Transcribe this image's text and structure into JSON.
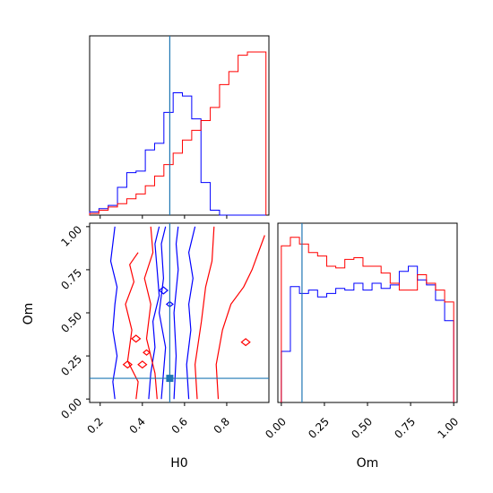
{
  "chart_data": [
    {
      "panel": "H0 marginal",
      "type": "histogram",
      "xlim": [
        0.15,
        1.0
      ],
      "truth_line": 0.53,
      "series": [
        {
          "color": "#0000ff",
          "bin_edges": [
            0.15,
            0.194,
            0.238,
            0.282,
            0.326,
            0.37,
            0.414,
            0.458,
            0.502,
            0.546,
            0.59,
            0.634,
            0.678,
            0.722,
            0.766,
            0.81,
            0.854,
            0.898,
            0.942,
            0.986
          ],
          "counts": [
            0.02,
            0.04,
            0.06,
            0.17,
            0.26,
            0.27,
            0.4,
            0.44,
            0.63,
            0.75,
            0.73,
            0.59,
            0.2,
            0.03,
            0.0,
            0.0,
            0.0,
            0.0,
            0.0
          ]
        },
        {
          "color": "#ff0000",
          "bin_edges": [
            0.15,
            0.194,
            0.238,
            0.282,
            0.326,
            0.37,
            0.414,
            0.458,
            0.502,
            0.546,
            0.59,
            0.634,
            0.678,
            0.722,
            0.766,
            0.81,
            0.854,
            0.898,
            0.942,
            0.986
          ],
          "counts": [
            0.01,
            0.03,
            0.05,
            0.07,
            0.1,
            0.13,
            0.18,
            0.24,
            0.31,
            0.38,
            0.46,
            0.52,
            0.58,
            0.66,
            0.8,
            0.88,
            0.98,
            1.0,
            1.0
          ]
        }
      ],
      "xticks": [
        0.2,
        0.4,
        0.6,
        0.8
      ]
    },
    {
      "panel": "Om vs H0 joint",
      "type": "contour",
      "xlabel": "H0",
      "ylabel": "Om",
      "xlim": [
        0.15,
        1.0
      ],
      "ylim": [
        0.0,
        1.0
      ],
      "xticks": [
        "0.2",
        "0.4",
        "0.6",
        "0.8"
      ],
      "yticks": [
        "0.00",
        "0.25",
        "0.50",
        "0.75",
        "1.00"
      ],
      "truth_point": {
        "H0": 0.53,
        "Om": 0.12
      },
      "series": [
        {
          "name": "",
          "color": "#0000ff",
          "contours": [
            [
              [
                0.27,
                0.0
              ],
              [
                0.26,
                0.1
              ],
              [
                0.28,
                0.25
              ],
              [
                0.26,
                0.4
              ],
              [
                0.27,
                0.55
              ],
              [
                0.28,
                0.65
              ],
              [
                0.25,
                0.8
              ],
              [
                0.27,
                1.0
              ]
            ],
            [
              [
                0.43,
                0.0
              ],
              [
                0.44,
                0.15
              ],
              [
                0.46,
                0.3
              ],
              [
                0.45,
                0.45
              ],
              [
                0.48,
                0.6
              ],
              [
                0.47,
                0.75
              ],
              [
                0.46,
                0.9
              ],
              [
                0.48,
                1.0
              ]
            ],
            [
              [
                0.62,
                0.0
              ],
              [
                0.61,
                0.2
              ],
              [
                0.63,
                0.4
              ],
              [
                0.62,
                0.55
              ],
              [
                0.64,
                0.7
              ],
              [
                0.62,
                0.85
              ],
              [
                0.65,
                1.0
              ]
            ],
            [
              [
                0.49,
                0.0
              ],
              [
                0.51,
                0.3
              ],
              [
                0.48,
                0.5
              ],
              [
                0.5,
                0.7
              ],
              [
                0.49,
                0.9
              ],
              [
                0.51,
                1.0
              ]
            ],
            [
              [
                0.55,
                0.0
              ],
              [
                0.56,
                0.25
              ],
              [
                0.55,
                0.5
              ],
              [
                0.57,
                0.75
              ],
              [
                0.56,
                0.9
              ],
              [
                0.57,
                1.0
              ]
            ]
          ]
        },
        {
          "name": "",
          "color": "#ff0000",
          "contours": [
            [
              [
                0.37,
                0.0
              ],
              [
                0.38,
                0.1
              ],
              [
                0.33,
                0.22
              ],
              [
                0.35,
                0.4
              ],
              [
                0.32,
                0.55
              ],
              [
                0.36,
                0.68
              ],
              [
                0.34,
                0.78
              ],
              [
                0.38,
                0.85
              ]
            ],
            [
              [
                0.47,
                0.0
              ],
              [
                0.46,
                0.15
              ],
              [
                0.42,
                0.35
              ],
              [
                0.44,
                0.55
              ],
              [
                0.41,
                0.7
              ],
              [
                0.45,
                0.85
              ],
              [
                0.44,
                1.0
              ]
            ],
            [
              [
                0.76,
                0.0
              ],
              [
                0.75,
                0.2
              ],
              [
                0.78,
                0.4
              ],
              [
                0.82,
                0.55
              ],
              [
                0.88,
                0.65
              ],
              [
                0.92,
                0.75
              ],
              [
                0.98,
                0.95
              ]
            ],
            [
              [
                0.66,
                0.0
              ],
              [
                0.65,
                0.2
              ],
              [
                0.68,
                0.45
              ],
              [
                0.7,
                0.65
              ],
              [
                0.73,
                0.8
              ],
              [
                0.74,
                1.0
              ]
            ]
          ]
        }
      ]
    },
    {
      "panel": "Om marginal",
      "type": "histogram",
      "xlabel": "Om",
      "xlim": [
        -0.02,
        1.02
      ],
      "truth_line": 0.12,
      "xticks": [
        "0.00",
        "0.25",
        "0.50",
        "0.75",
        "1.00"
      ],
      "series": [
        {
          "color": "#0000ff",
          "bin_edges": [
            0.0,
            0.0526,
            0.1053,
            0.1579,
            0.2105,
            0.2632,
            0.3158,
            0.3684,
            0.4211,
            0.4737,
            0.5263,
            0.5789,
            0.6316,
            0.6842,
            0.7368,
            0.7895,
            0.8421,
            0.8947,
            0.9474,
            1.0
          ],
          "counts": [
            0.3,
            0.68,
            0.64,
            0.66,
            0.62,
            0.64,
            0.67,
            0.66,
            0.7,
            0.66,
            0.7,
            0.67,
            0.69,
            0.77,
            0.8,
            0.72,
            0.69,
            0.6,
            0.48
          ]
        },
        {
          "color": "#ff0000",
          "bin_edges": [
            0.0,
            0.0526,
            0.1053,
            0.1579,
            0.2105,
            0.2632,
            0.3158,
            0.3684,
            0.4211,
            0.4737,
            0.5263,
            0.5789,
            0.6316,
            0.6842,
            0.7368,
            0.7895,
            0.8421,
            0.8947,
            0.9474,
            1.0
          ],
          "counts": [
            0.92,
            0.97,
            0.93,
            0.88,
            0.86,
            0.8,
            0.79,
            0.84,
            0.85,
            0.8,
            0.8,
            0.76,
            0.7,
            0.66,
            0.66,
            0.75,
            0.7,
            0.66,
            0.59
          ]
        }
      ]
    }
  ],
  "axis_labels": {
    "x_left": "H0",
    "x_right": "Om",
    "y_left": "Om"
  },
  "ticks": {
    "h0": [
      "0.2",
      "0.4",
      "0.6",
      "0.8"
    ],
    "om_y": [
      "0.00",
      "0.25",
      "0.50",
      "0.75",
      "1.00"
    ],
    "om_x": [
      "0.00",
      "0.25",
      "0.50",
      "0.75",
      "1.00"
    ]
  },
  "colors": {
    "blue": "#0000ff",
    "red": "#ff0000",
    "truth": "#1f77b4"
  }
}
